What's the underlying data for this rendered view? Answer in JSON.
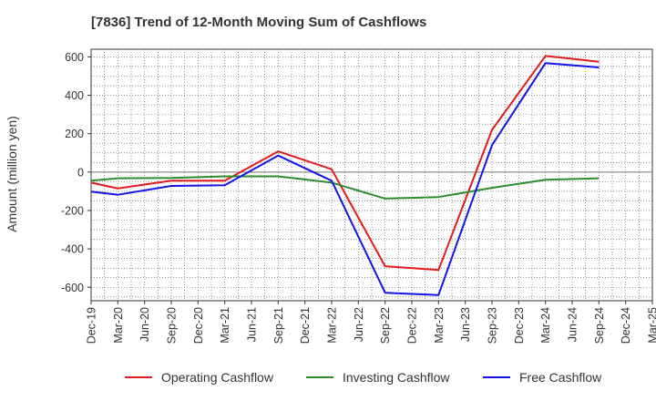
{
  "chart_data": {
    "type": "line",
    "title": "[7836]  Trend of 12-Month Moving Sum of Cashflows",
    "xlabel": "",
    "ylabel": "Amount (million yen)",
    "ylim": [
      -670,
      640
    ],
    "yticks": [
      600,
      400,
      200,
      0,
      -200,
      -400,
      -600
    ],
    "grid": true,
    "legend_position": "bottom",
    "categories": [
      "Dec-19",
      "Mar-20",
      "Jun-20",
      "Sep-20",
      "Dec-20",
      "Mar-21",
      "Jun-21",
      "Sep-21",
      "Dec-21",
      "Mar-22",
      "Jun-22",
      "Sep-22",
      "Dec-22",
      "Mar-23",
      "Jun-23",
      "Sep-23",
      "Dec-23",
      "Mar-24",
      "Jun-24",
      "Sep-24",
      "Dec-24",
      "Mar-25"
    ],
    "series": [
      {
        "name": "Operating Cashflow",
        "color": "#e41a1c",
        "values": [
          -55,
          -85,
          null,
          -45,
          null,
          -45,
          null,
          108,
          null,
          15,
          null,
          -490,
          null,
          -510,
          null,
          220,
          null,
          605,
          null,
          575,
          null,
          null
        ]
      },
      {
        "name": "Investing Cashflow",
        "color": "#2e8b2e",
        "values": [
          -45,
          -32,
          null,
          -30,
          null,
          -22,
          null,
          -22,
          null,
          -55,
          null,
          -138,
          null,
          -130,
          null,
          -82,
          null,
          -40,
          null,
          -32,
          null,
          null
        ]
      },
      {
        "name": "Free Cashflow",
        "color": "#1414e6",
        "values": [
          -102,
          -118,
          null,
          -72,
          null,
          -68,
          null,
          86,
          null,
          -45,
          null,
          -628,
          null,
          -640,
          null,
          140,
          null,
          568,
          null,
          545,
          null,
          null
        ]
      }
    ]
  }
}
